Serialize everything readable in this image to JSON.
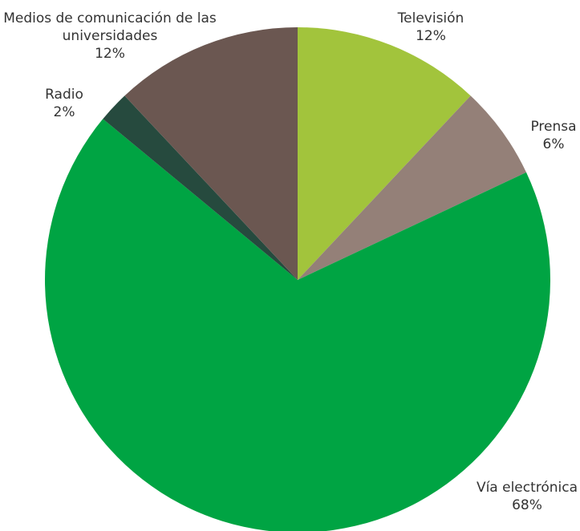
{
  "chart_data": {
    "type": "pie",
    "categories": [
      "Televisión",
      "Prensa",
      "Vía electrónica",
      "Radio",
      "Medios de comunicación de las universidades"
    ],
    "values": [
      12,
      6,
      68,
      2,
      12
    ],
    "value_labels": [
      "12%",
      "6%",
      "68%",
      "2%",
      "12%"
    ],
    "colors": [
      "#a2c43c",
      "#948078",
      "#00a443",
      "#264a3e",
      "#6b5751"
    ]
  }
}
